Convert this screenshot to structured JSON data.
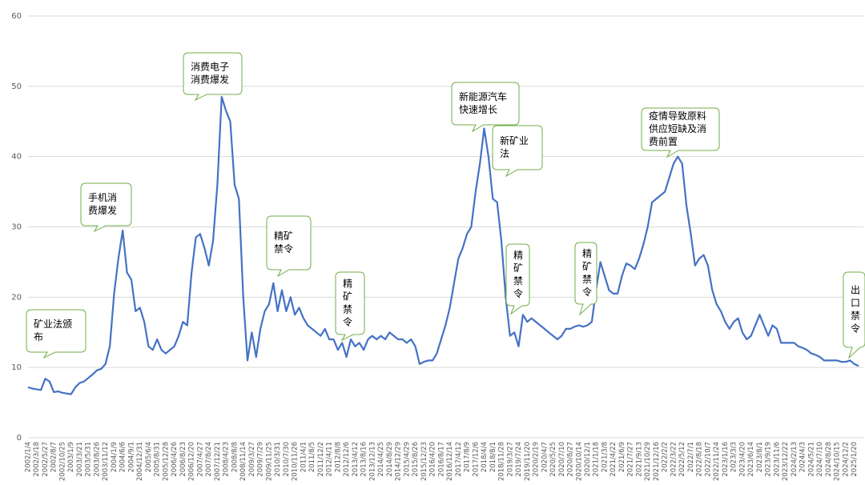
{
  "chart_data": {
    "type": "line",
    "categories": [
      "2002/1/4",
      null,
      "2002/3/18",
      null,
      "2002/5/27",
      null,
      "2002/8/7",
      null,
      "2002/10/25",
      null,
      "2003/1/9",
      null,
      "2003/3/21",
      null,
      "2003/5/31",
      null,
      "2003/8/26",
      null,
      "2003/11/12",
      null,
      "2004/1/9",
      null,
      "2004/6/6",
      null,
      "2004/9/1",
      null,
      "2004/12/31",
      null,
      "2005/6/4",
      null,
      "2005/8/31",
      null,
      "2005/12/28",
      null,
      "2006/4/26",
      null,
      "2006/8/23",
      null,
      "2006/12/20",
      null,
      "2007/4/27",
      null,
      "2007/8/24",
      null,
      "2007/12/21",
      null,
      "2008/4/23",
      null,
      "2008/8/8",
      null,
      "2008/11/14",
      null,
      "2009/3/27",
      null,
      "2009/7/29",
      null,
      "2009/11/25",
      null,
      "2010/3/31",
      null,
      "2010/7/30",
      null,
      "2010/11/26",
      null,
      "2011/4/1",
      null,
      "2011/8/5",
      null,
      "2011/12/2",
      null,
      "2012/4/11",
      null,
      "2012/8/8",
      null,
      "2012/12/6",
      null,
      "2013/4/12",
      null,
      "2013/8/16",
      null,
      "2013/12/13",
      null,
      "2014/4/25",
      null,
      "2014/8/29",
      null,
      "2014/12/29",
      null,
      "2015/4/29",
      null,
      "2015/8/26",
      null,
      "2015/12/23",
      null,
      "2016/4/20",
      null,
      "2016/8/17",
      null,
      "2016/12/14",
      null,
      "2017/4/12",
      null,
      "2017/8/9",
      null,
      "2017/12/6",
      null,
      "2018/4/4",
      null,
      "2018/8/1",
      null,
      "2018/11/28",
      null,
      "2019/3/27",
      null,
      "2019/7/24",
      null,
      "2019/11/20",
      null,
      "2020/2/19",
      null,
      "2020/4/7",
      null,
      "2020/5/25",
      null,
      "2020/7/10",
      null,
      "2020/8/27",
      null,
      "2020/10/14",
      null,
      "2020/12/1",
      null,
      "2021/1/18",
      null,
      "2021/3/8",
      null,
      "2021/4/22",
      null,
      "2021/6/9",
      null,
      "2021/7/27",
      null,
      "2021/9/13",
      null,
      "2021/10/29",
      null,
      "2021/12/16",
      null,
      "2022/2/2",
      null,
      "2022/3/22",
      null,
      "2022/5/12",
      null,
      "2022/7/1",
      null,
      "2022/8/18",
      null,
      "2022/10/7",
      null,
      "2022/11/24",
      null,
      "2023/1/16",
      null,
      "2023/3/3",
      null,
      "2023/4/20",
      null,
      "2023/6/14",
      null,
      "2023/8/1",
      null,
      "2023/9/19",
      null,
      "2023/11/6",
      null,
      "2023/12/22",
      null,
      "2024/2/13",
      null,
      "2024/4/3",
      null,
      "2024/5/21",
      null,
      "2024/7/10",
      null,
      "2024/8/28",
      null,
      "2024/10/15",
      null,
      "2024/12/2",
      null,
      "2025/1/20",
      null
    ],
    "values": [
      7.2,
      7,
      6.9,
      6.8,
      8.4,
      8,
      6.5,
      6.6,
      6.4,
      6.3,
      6.2,
      7.2,
      7.8,
      8,
      8.5,
      9,
      9.6,
      9.8,
      10.5,
      13,
      20.5,
      25.5,
      29.5,
      23.5,
      22.5,
      18,
      18.5,
      16.5,
      13,
      12.5,
      14,
      12.5,
      12,
      12.5,
      13,
      14.5,
      16.5,
      16,
      23.5,
      28.5,
      29,
      27,
      24.5,
      28,
      36,
      48.5,
      46.5,
      45,
      36,
      34,
      20,
      11,
      15,
      11.5,
      15.5,
      18,
      19,
      22,
      18,
      21,
      18,
      20,
      17.5,
      18.5,
      17,
      16,
      15.5,
      15,
      14.5,
      15.5,
      14,
      14,
      12.5,
      13.5,
      11.5,
      14,
      13,
      13.5,
      12.5,
      14,
      14.5,
      14,
      14.5,
      14,
      15,
      14.5,
      14,
      14,
      13.5,
      14,
      13,
      10.5,
      10.8,
      11,
      11,
      12,
      14,
      16,
      18.5,
      22,
      25.5,
      27,
      29,
      30,
      35,
      39,
      44,
      40,
      34,
      33.5,
      28,
      20,
      14.5,
      15,
      13,
      17.5,
      16.5,
      17,
      16.5,
      16,
      15.5,
      15,
      14.5,
      14,
      14.5,
      15.5,
      15.5,
      15.8,
      16,
      15.8,
      16,
      16.5,
      21,
      25,
      23,
      21,
      20.5,
      20.5,
      23,
      24.8,
      24.5,
      24,
      25.5,
      27.5,
      30,
      33.5,
      34,
      34.5,
      35,
      37,
      39,
      40,
      39,
      33,
      29,
      24.5,
      25.5,
      26,
      24.5,
      21,
      19,
      18,
      16.5,
      15.5,
      16.5,
      17,
      15,
      14,
      14.5,
      16,
      17.5,
      16,
      14.5,
      16,
      15.5,
      13.5,
      13.5,
      13.5,
      13.5,
      13,
      12.8,
      12.5,
      12,
      11.8,
      11.5,
      11,
      11,
      11,
      11,
      10.8,
      10.8,
      11,
      10.5,
      10.2
    ],
    "color": "#4472c4",
    "ylim": [
      0,
      60
    ],
    "yticks": [
      0,
      10,
      20,
      30,
      40,
      50,
      60
    ],
    "grid": true,
    "annotations": [
      {
        "lines": [
          "矿业法颁",
          "布"
        ]
      },
      {
        "lines": [
          "手机消",
          "费爆发"
        ]
      },
      {
        "lines": [
          "消费电子",
          "消费爆发"
        ]
      },
      {
        "lines": [
          "精矿",
          "禁令"
        ]
      },
      {
        "lines": [
          "精",
          "矿",
          "禁",
          "令"
        ]
      },
      {
        "lines": [
          "新能源汽车",
          "快速增长"
        ]
      },
      {
        "lines": [
          "新矿业",
          "法"
        ]
      },
      {
        "lines": [
          "精",
          "矿",
          "禁",
          "令"
        ]
      },
      {
        "lines": [
          "精",
          "矿",
          "禁",
          "令"
        ]
      },
      {
        "lines": [
          "疫情导致原料",
          "供应短缺及消",
          "费前置"
        ]
      },
      {
        "lines": [
          "出",
          "口",
          "禁",
          "令"
        ]
      }
    ]
  }
}
